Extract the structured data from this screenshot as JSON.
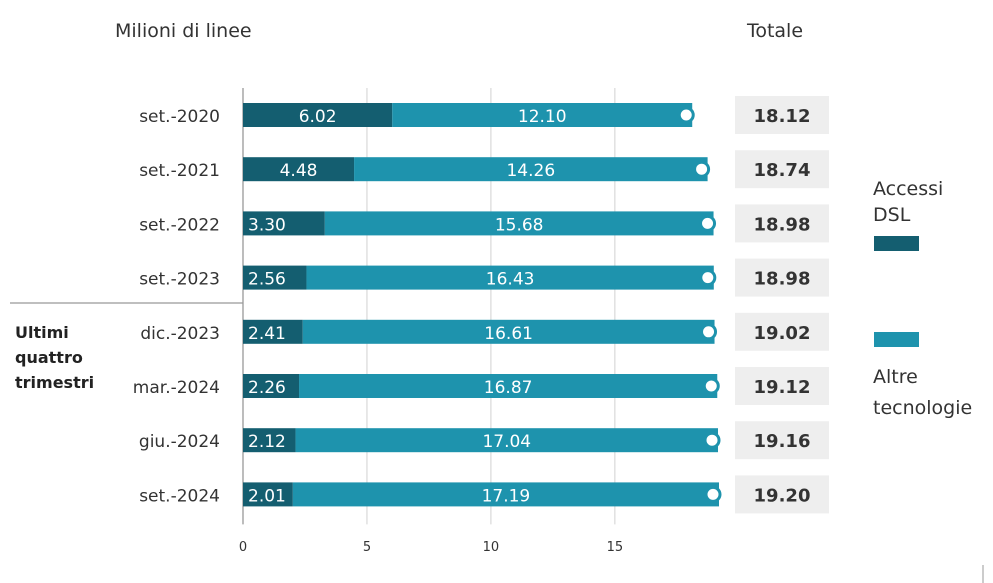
{
  "chart_data": {
    "type": "bar",
    "stacked": true,
    "orientation": "horizontal",
    "unit_label": "Milioni di linee",
    "total_header": "Totale",
    "categories": [
      "set.-2020",
      "set.-2021",
      "set.-2022",
      "set.-2023",
      "dic.-2023",
      "mar.-2024",
      "giu.-2024",
      "set.-2024"
    ],
    "series": [
      {
        "name": "Accessi DSL",
        "color": "#145e70",
        "values": [
          6.02,
          4.48,
          3.3,
          2.56,
          2.41,
          2.26,
          2.12,
          2.01
        ],
        "labels": [
          "6.02",
          "4.48",
          "3.30",
          "2.56",
          "2.41",
          "2.26",
          "2.12",
          "2.01"
        ]
      },
      {
        "name": "Altre tecnologie",
        "color": "#1e93ad",
        "values": [
          12.1,
          14.26,
          15.68,
          16.43,
          16.61,
          16.87,
          17.04,
          17.19
        ],
        "labels": [
          "12.10",
          "14.26",
          "15.68",
          "16.43",
          "16.61",
          "16.87",
          "17.04",
          "17.19"
        ]
      }
    ],
    "totals": [
      "18.12",
      "18.74",
      "18.98",
      "18.98",
      "19.02",
      "19.12",
      "19.16",
      "19.20"
    ],
    "x_ticks": [
      0,
      5,
      10,
      15
    ],
    "x_tick_labels": [
      "0",
      "5",
      "10",
      "15"
    ],
    "xlim": [
      0,
      19.2
    ],
    "group_label": [
      "Ultimi",
      "quattro",
      "trimestri"
    ],
    "legend": [
      {
        "lines": [
          "Accessi",
          "DSL"
        ],
        "color": "#145e70"
      },
      {
        "lines": [
          "Altre",
          "tecnologie"
        ],
        "color": "#1e93ad"
      }
    ],
    "legend_position": "right",
    "grid": true
  }
}
